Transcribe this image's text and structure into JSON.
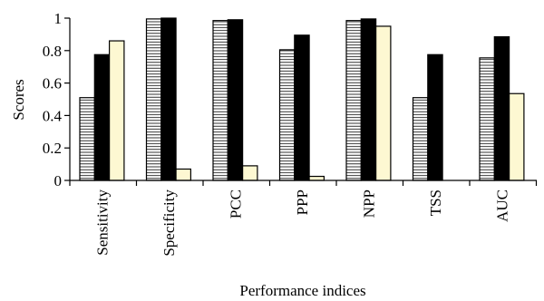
{
  "chart_data": {
    "type": "bar",
    "xlabel": "Performance indices",
    "ylabel": "Scores",
    "ylim": [
      0,
      1
    ],
    "yticks": [
      0,
      0.2,
      0.4,
      0.6,
      0.8,
      1
    ],
    "ytick_labels": [
      "0",
      "0.2",
      "0.4",
      "0.6",
      "0.8",
      "1"
    ],
    "categories": [
      "Sensitivity",
      "Specificity",
      "PCC",
      "PPP",
      "NPP",
      "TSS",
      "AUC"
    ],
    "grid": false,
    "legend": "none",
    "series": [
      {
        "values": [
          0.51,
          0.995,
          0.985,
          0.805,
          0.985,
          0.51,
          0.755
        ],
        "fill": "hatched-horizontal"
      },
      {
        "values": [
          0.775,
          1.0,
          0.99,
          0.895,
          0.995,
          0.775,
          0.885
        ],
        "fill": "#000000"
      },
      {
        "values": [
          0.86,
          0.07,
          0.09,
          0.025,
          0.95,
          0.0,
          0.535
        ],
        "fill": "#fdf8d2"
      }
    ]
  }
}
